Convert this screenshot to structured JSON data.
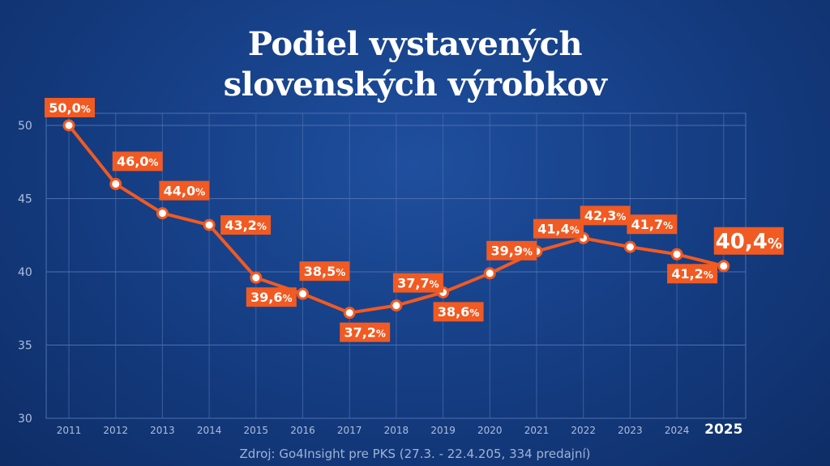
{
  "title_lines": [
    "Podiel vystavených",
    "slovenských výrobkov"
  ],
  "source": "Zdroj: Go4Insight pre PKS (27.3. - 22.4.205, 334 predajní)",
  "colors": {
    "line": "#f15a22",
    "label_bg": "#f15a22",
    "label_text": "#ffffff",
    "grid": "#4d6fae",
    "axis_text": "#aebfdc"
  },
  "chart_data": {
    "type": "line",
    "title": "Podiel vystavených slovenských výrobkov",
    "xlabel": "",
    "ylabel": "",
    "ylim": [
      30,
      50
    ],
    "yticks": [
      30,
      35,
      40,
      45,
      50
    ],
    "categories": [
      "2011",
      "2012",
      "2013",
      "2014",
      "2015",
      "2016",
      "2017",
      "2018",
      "2019",
      "2020",
      "2021",
      "2022",
      "2023",
      "2024",
      "2025"
    ],
    "values": [
      50.0,
      46.0,
      44.0,
      43.2,
      39.6,
      38.5,
      37.2,
      37.7,
      38.6,
      39.9,
      41.4,
      42.3,
      41.7,
      41.2,
      40.4
    ],
    "labels": [
      "50,0",
      "46,0",
      "44,0",
      "43,2",
      "39,6",
      "38,5",
      "37,2",
      "37,7",
      "38,6",
      "39,9",
      "41,4",
      "42,3",
      "41,7",
      "41,2",
      "40,4"
    ],
    "unit": "%",
    "label_position": [
      "above",
      "above",
      "above",
      "right",
      "below",
      "above",
      "below",
      "above",
      "below",
      "above",
      "above",
      "above",
      "above",
      "below",
      "above"
    ],
    "highlight_last": true,
    "grid": true
  }
}
